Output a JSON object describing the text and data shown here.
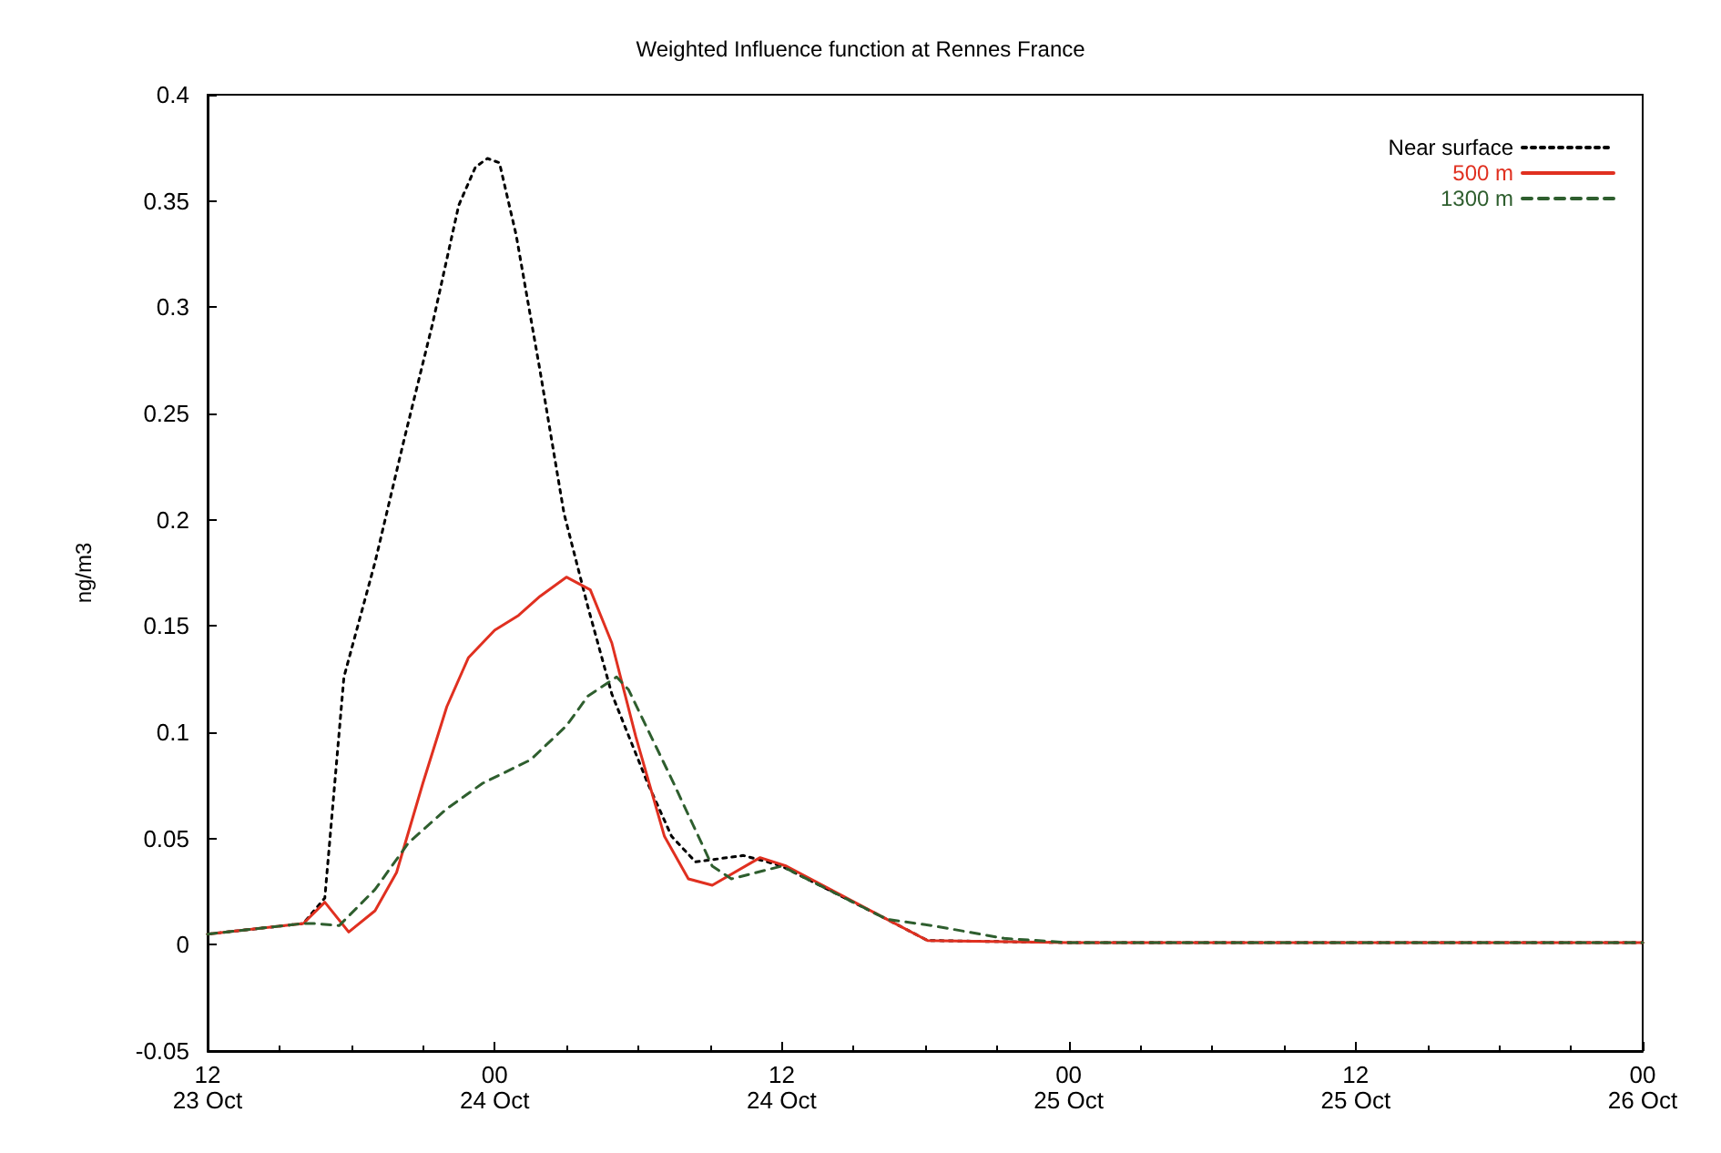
{
  "chart_data": {
    "type": "line",
    "title": "Weighted Influence function at Rennes France",
    "ylabel": "ng/m3",
    "xlim": [
      "--10-23T12:00",
      "--10-26T00:00"
    ],
    "xticks": [
      {
        "value": "--10-23T12:00",
        "label": "12\n23 Oct"
      },
      {
        "value": "--10-24T00:00",
        "label": "00\n24 Oct"
      },
      {
        "value": "--10-24T12:00",
        "label": "12\n24 Oct"
      },
      {
        "value": "--10-25T00:00",
        "label": "00\n25 Oct"
      },
      {
        "value": "--10-25T12:00",
        "label": "12\n25 Oct"
      },
      {
        "value": "--10-26T00:00",
        "label": "00\n26 Oct"
      }
    ],
    "ylim": [
      -0.05,
      0.4
    ],
    "yticks": [
      -0.05,
      0,
      0.05,
      0.1,
      0.15,
      0.2,
      0.25,
      0.3,
      0.35,
      0.4
    ],
    "legend": "top right",
    "grid": false,
    "marker": "none",
    "series": [
      {
        "name": "Near surface",
        "color": "#000000",
        "line_style": "dotted",
        "x": [
          "--10-23T12:00",
          "--10-23T16:00",
          "--10-23T16:54",
          "--10-23T17:42",
          "--10-23T19:00",
          "--10-23T20:12",
          "--10-23T21:24",
          "--10-23T22:30",
          "--10-23T23:12",
          "--10-23T23:42",
          "--10-24T00:12",
          "--10-24T00:54",
          "--10-24T01:54",
          "--10-24T02:54",
          "--10-24T03:54",
          "--10-24T04:54",
          "--10-24T06:24",
          "--10-24T07:24",
          "--10-24T08:24",
          "--10-24T10:24",
          "--10-24T11:24",
          "--10-24T12:00",
          "--10-24T16:24",
          "--10-24T18:06",
          "--10-25T00:00",
          "--10-25T12:00",
          "--10-26T00:00"
        ],
        "values": [
          0.005,
          0.01,
          0.022,
          0.126,
          0.18,
          0.237,
          0.292,
          0.348,
          0.366,
          0.37,
          0.368,
          0.334,
          0.27,
          0.203,
          0.159,
          0.118,
          0.076,
          0.051,
          0.039,
          0.042,
          0.039,
          0.037,
          0.012,
          0.002,
          0.001,
          0.001,
          0.001
        ]
      },
      {
        "name": "500 m",
        "color": "#e03020",
        "line_style": "solid",
        "x": [
          "--10-23T12:00",
          "--10-23T16:00",
          "--10-23T16:54",
          "--10-23T17:54",
          "--10-23T19:00",
          "--10-23T19:54",
          "--10-23T21:00",
          "--10-23T22:00",
          "--10-23T22:54",
          "--10-24T00:00",
          "--10-24T01:00",
          "--10-24T01:54",
          "--10-24T03:00",
          "--10-24T04:00",
          "--10-24T04:54",
          "--10-24T05:54",
          "--10-24T07:06",
          "--10-24T08:06",
          "--10-24T09:06",
          "--10-24T11:06",
          "--10-24T12:12",
          "--10-24T16:24",
          "--10-24T18:06",
          "--10-25T00:00",
          "--10-25T12:00",
          "--10-26T00:00"
        ],
        "values": [
          0.005,
          0.01,
          0.02,
          0.006,
          0.016,
          0.034,
          0.076,
          0.112,
          0.135,
          0.148,
          0.155,
          0.164,
          0.173,
          0.167,
          0.142,
          0.098,
          0.051,
          0.031,
          0.028,
          0.041,
          0.037,
          0.012,
          0.002,
          0.001,
          0.001,
          0.001
        ]
      },
      {
        "name": "1300 m",
        "color": "#2e5e2e",
        "line_style": "dashed",
        "x": [
          "--10-23T12:00",
          "--10-23T16:00",
          "--10-23T16:30",
          "--10-23T17:30",
          "--10-23T19:00",
          "--10-23T20:24",
          "--10-23T22:00",
          "--10-23T23:30",
          "--10-24T01:30",
          "--10-24T03:00",
          "--10-24T03:54",
          "--10-24T05:06",
          "--10-24T05:36",
          "--10-24T07:24",
          "--10-24T09:06",
          "--10-24T09:54",
          "--10-24T12:00",
          "--10-24T16:24",
          "--10-24T18:18",
          "--10-24T21:18",
          "--10-25T00:00",
          "--10-25T12:00",
          "--10-26T00:00"
        ],
        "values": [
          0.005,
          0.01,
          0.01,
          0.009,
          0.026,
          0.048,
          0.064,
          0.076,
          0.087,
          0.103,
          0.117,
          0.126,
          0.12,
          0.078,
          0.037,
          0.031,
          0.037,
          0.012,
          0.009,
          0.003,
          0.001,
          0.001,
          0.001
        ]
      }
    ]
  }
}
